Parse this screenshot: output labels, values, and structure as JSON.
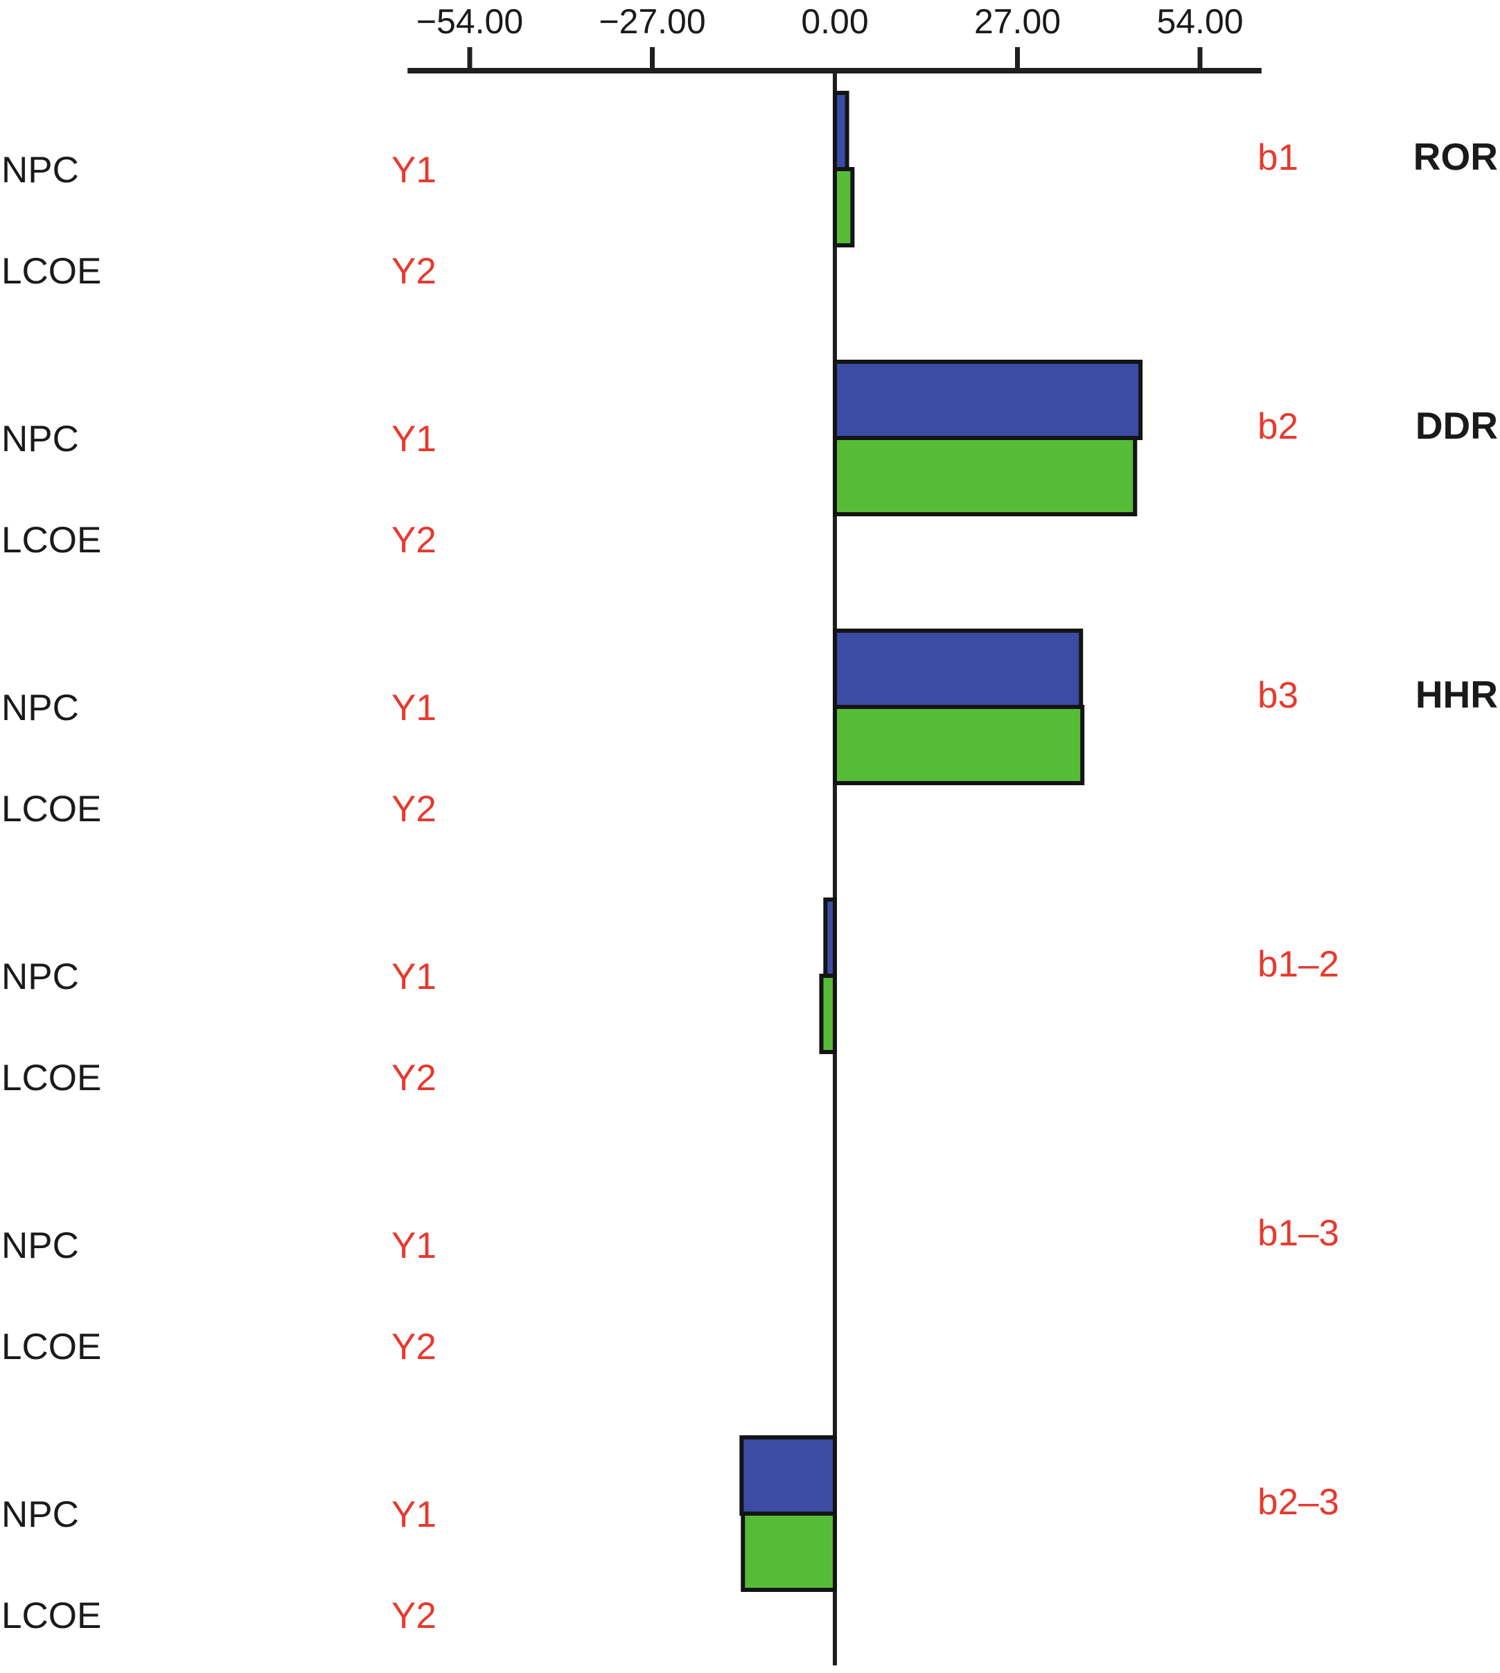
{
  "chart_data": {
    "type": "bar",
    "orientation": "horizontal",
    "title": "",
    "xlabel": "",
    "ylabel": "",
    "axis": {
      "position": "top",
      "ticks": [
        -54,
        -27,
        0,
        27,
        54
      ],
      "tick_labels": [
        "−54.00",
        "−27.00",
        "0.00",
        "27.00",
        "54.00"
      ],
      "range": [
        -63.2,
        63.1
      ],
      "grid": false
    },
    "legend_position": "none",
    "series": [
      {
        "id": "Y1",
        "metric": "NPC",
        "color": "#3c4ba3"
      },
      {
        "id": "Y2",
        "metric": "LCOE",
        "color": "#56bc38"
      }
    ],
    "groups": [
      {
        "coefficient": "b1",
        "category": "ROR",
        "values": {
          "Y1": 1.8,
          "Y2": 2.6
        }
      },
      {
        "coefficient": "b2",
        "category": "DDR",
        "values": {
          "Y1": 45.2,
          "Y2": 44.4
        }
      },
      {
        "coefficient": "b3",
        "category": "HHR",
        "values": {
          "Y1": 36.4,
          "Y2": 36.6
        }
      },
      {
        "coefficient": "b1–2",
        "category": "",
        "values": {
          "Y1": -1.4,
          "Y2": -2.0
        }
      },
      {
        "coefficient": "b1–3",
        "category": "",
        "values": {
          "Y1": 0,
          "Y2": 0
        }
      },
      {
        "coefficient": "b2–3",
        "category": "",
        "values": {
          "Y1": -13.8,
          "Y2": -13.6
        }
      }
    ]
  },
  "colors": {
    "bar_blue": "#3c4ba3",
    "bar_green": "#56bc38",
    "bar_stroke": "#141414",
    "axis": "#1f1f1f",
    "label_black": "#1a1a1a",
    "label_red": "#e8392e"
  }
}
